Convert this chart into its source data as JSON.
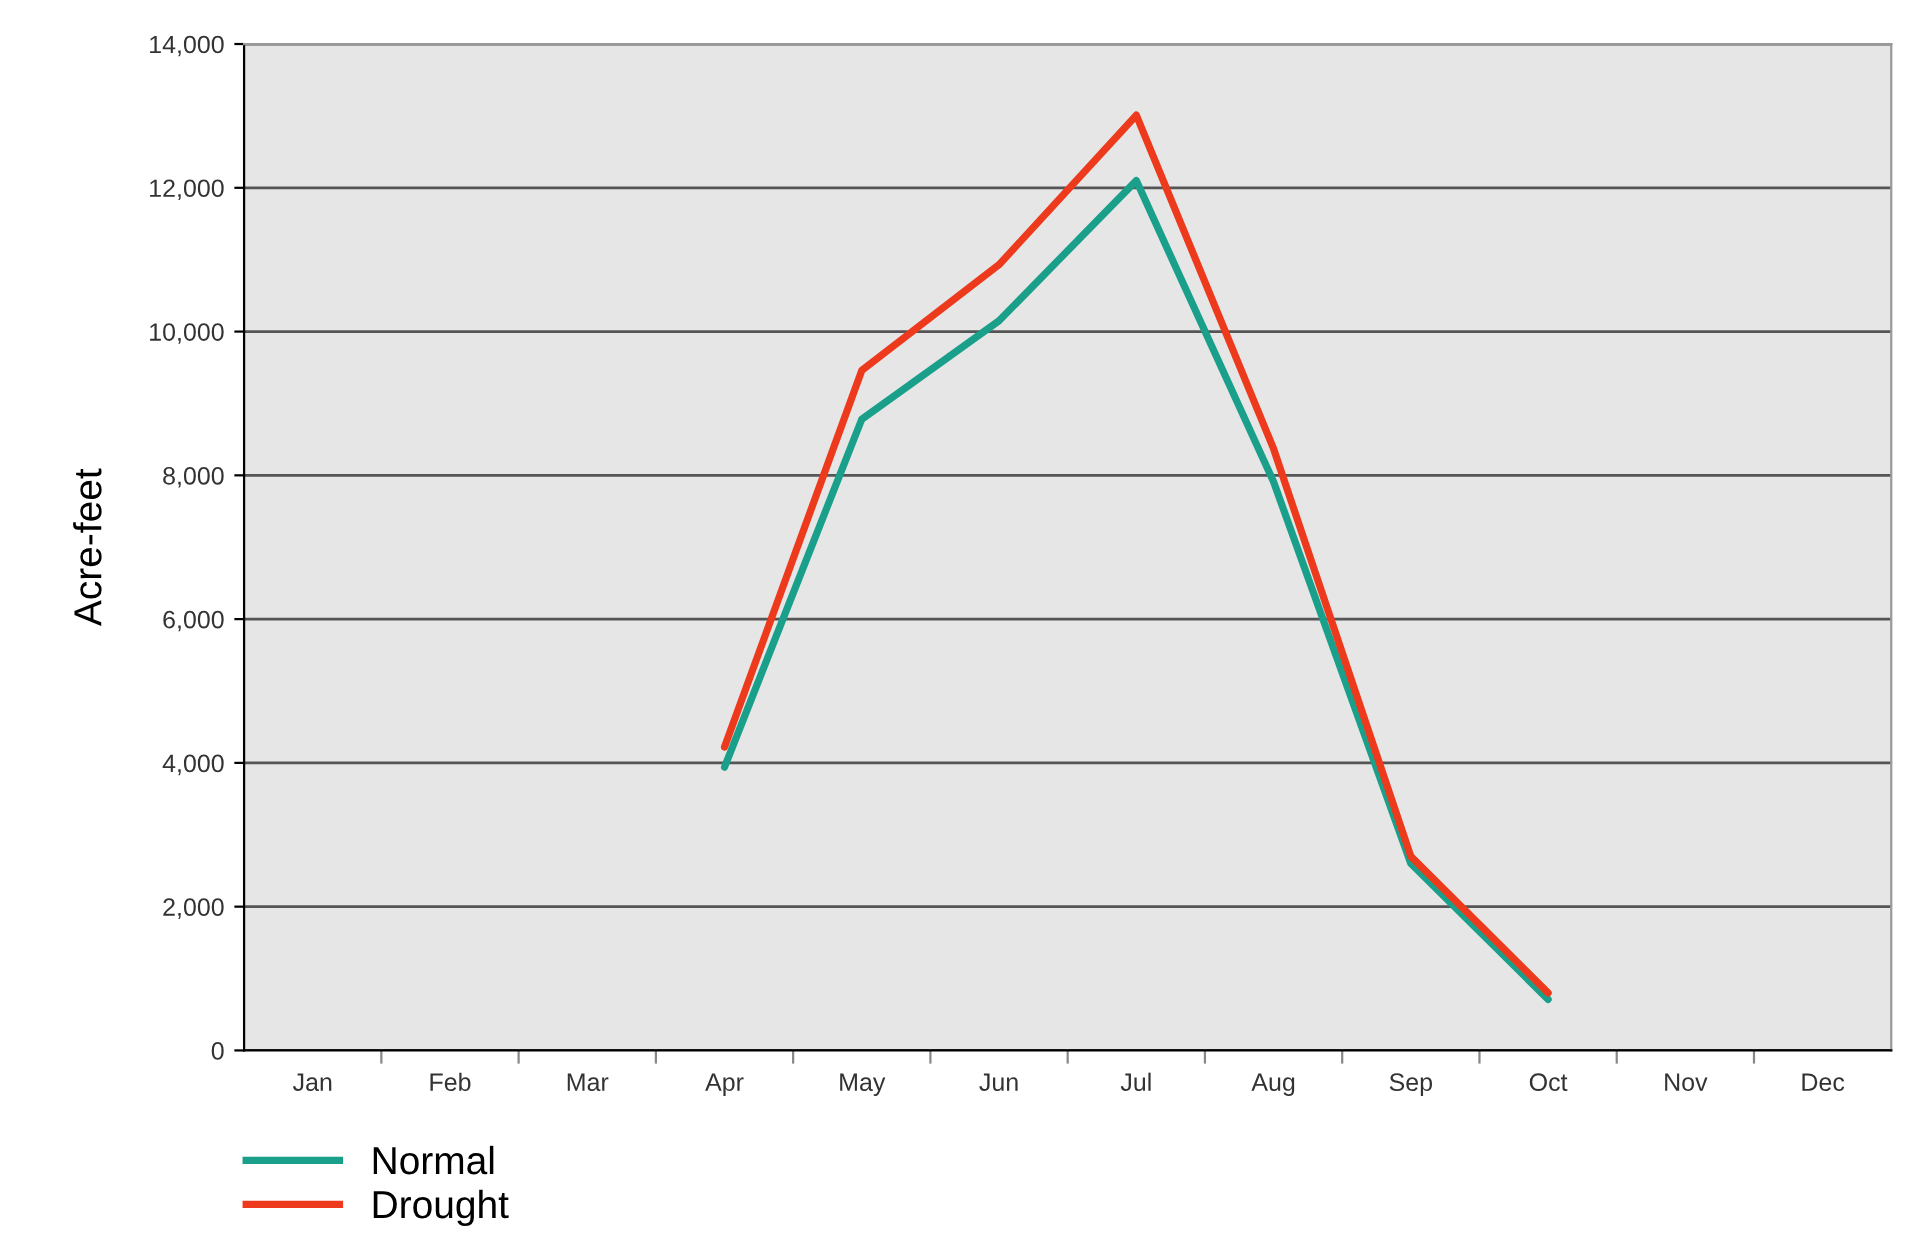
{
  "chart_data": {
    "type": "line",
    "ylabel": "Acre-feet",
    "categories": [
      "Jan",
      "Feb",
      "Mar",
      "Apr",
      "May",
      "Jun",
      "Jul",
      "Aug",
      "Sep",
      "Oct",
      "Nov",
      "Dec"
    ],
    "ylim": [
      0,
      14000
    ],
    "yticks": [
      {
        "value": 0,
        "label": "0"
      },
      {
        "value": 2000,
        "label": "2,000"
      },
      {
        "value": 4000,
        "label": "4,000"
      },
      {
        "value": 6000,
        "label": "6,000"
      },
      {
        "value": 8000,
        "label": "8,000"
      },
      {
        "value": 10000,
        "label": "10,000"
      },
      {
        "value": 12000,
        "label": "12,000"
      },
      {
        "value": 14000,
        "label": "14,000"
      }
    ],
    "grid": "y",
    "legend": "bottom left",
    "marker": "none",
    "line_style": "solid",
    "series": [
      {
        "name": "Normal",
        "color": "#1aa08a",
        "values": [
          null,
          null,
          null,
          3940,
          8780,
          10150,
          12100,
          7910,
          2600,
          710,
          null,
          null
        ]
      },
      {
        "name": "Drought",
        "color": "#ee3a1c",
        "values": [
          null,
          null,
          null,
          4220,
          9460,
          10930,
          13010,
          8370,
          2700,
          800,
          null,
          null
        ]
      }
    ]
  }
}
